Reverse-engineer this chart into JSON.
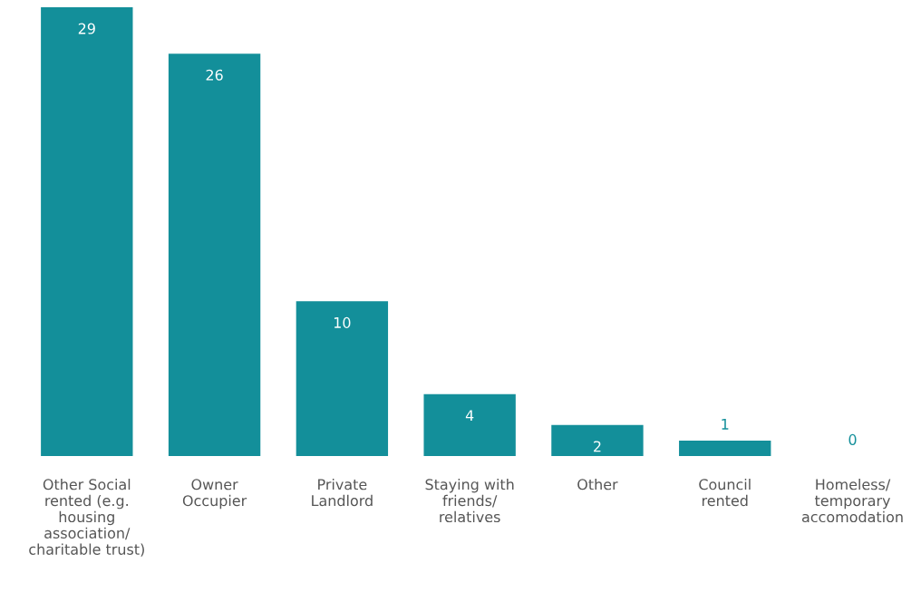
{
  "chart_data": {
    "type": "bar",
    "categories": [
      "Other Social\nrented (e.g.\nhousing\nassociation/\ncharitable trust)",
      "Owner\nOccupier",
      "Private\nLandlord",
      "Staying with\nfriends/\nrelatives",
      "Other",
      "Council\nrented",
      "Homeless/\ntemporary\naccomodation"
    ],
    "values": [
      29,
      26,
      10,
      4,
      2,
      1,
      0
    ],
    "color": "#138f9a",
    "data_labels": true,
    "grid": false,
    "legend": false
  }
}
